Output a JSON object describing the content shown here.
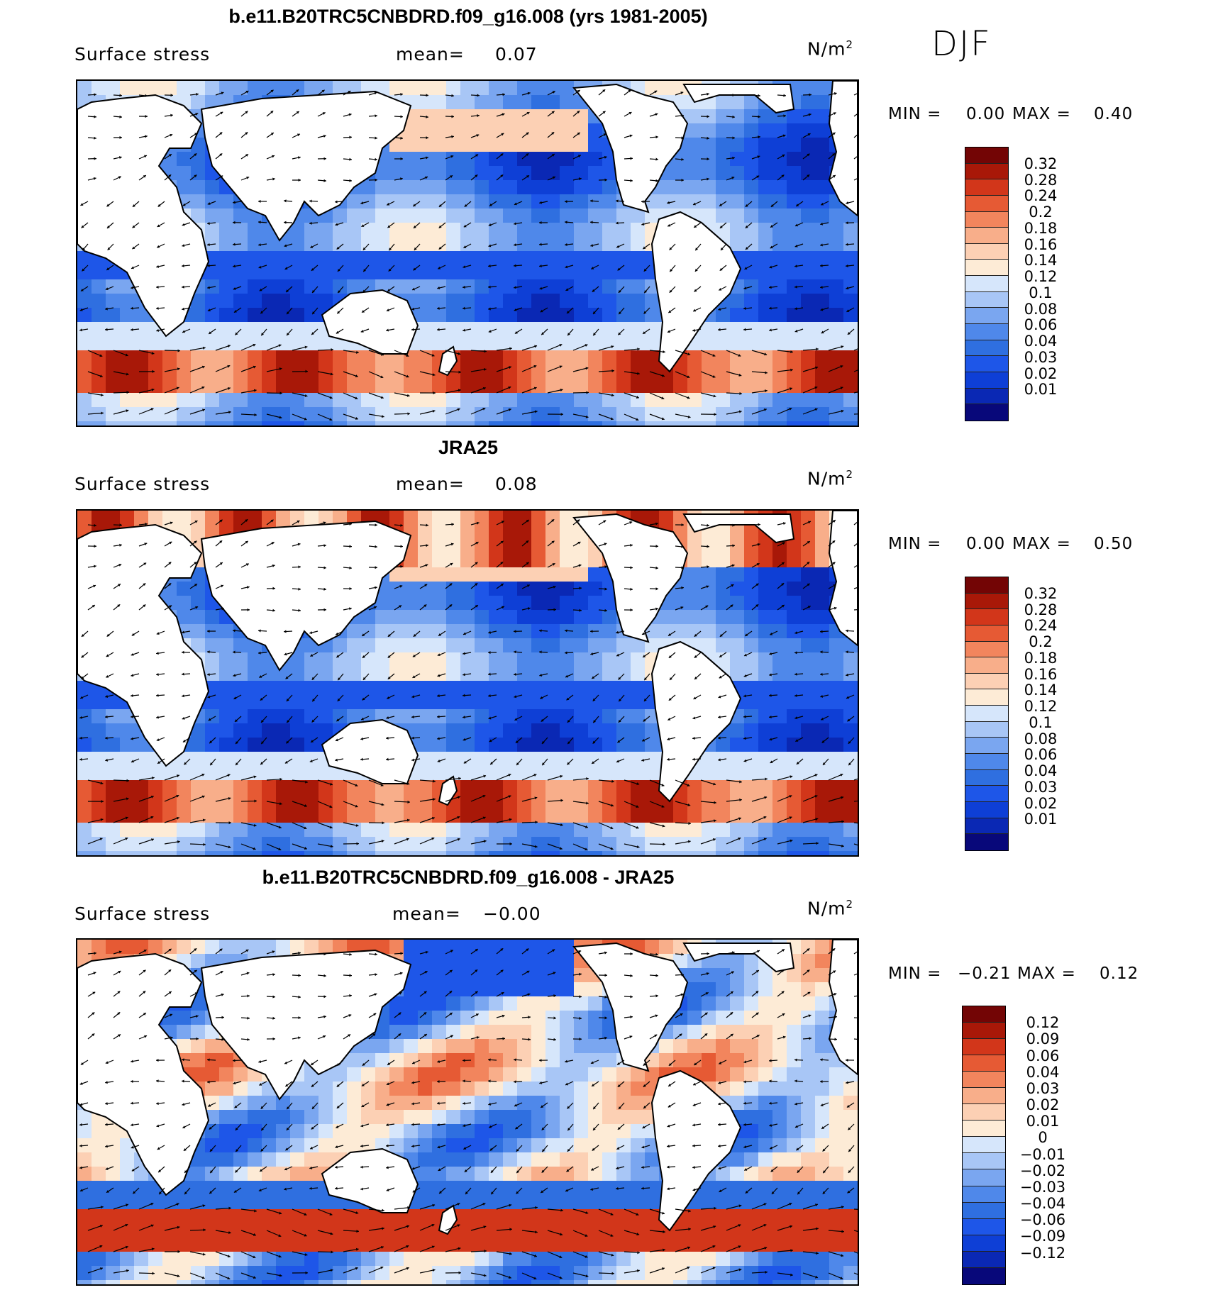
{
  "season": "DJF",
  "colors": {
    "land": "#ffffff",
    "scale": [
      "#08087a",
      "#0a28b4",
      "#0e3fd6",
      "#1e56e8",
      "#2f6fe0",
      "#4f88ea",
      "#7aa6f0",
      "#a8c6f6",
      "#d6e6fb",
      "#fdebd6",
      "#fcd0b4",
      "#f8ae8a",
      "#f2855d",
      "#e65a34",
      "#d2361a",
      "#a81808",
      "#730505"
    ]
  },
  "panels": [
    {
      "title": "b.e11.B20TRC5CNBDRD.f09_g16.008 (yrs 1981-2005)",
      "variable": "Surface stress",
      "mean_label": "mean=",
      "mean_value": "0.07",
      "units": "N/m",
      "units_exp": "2",
      "min_label": "MIN =",
      "min_value": "0.00",
      "max_label": "MAX =",
      "max_value": "0.40",
      "levels": [
        "0.32",
        "0.28",
        "0.24",
        "0.2",
        "0.18",
        "0.16",
        "0.14",
        "0.12",
        "0.1",
        "0.08",
        "0.06",
        "0.04",
        "0.03",
        "0.02",
        "0.01"
      ]
    },
    {
      "title": "JRA25",
      "variable": "Surface stress",
      "mean_label": "mean=",
      "mean_value": "0.08",
      "units": "N/m",
      "units_exp": "2",
      "min_label": "MIN =",
      "min_value": "0.00",
      "max_label": "MAX =",
      "max_value": "0.50",
      "levels": [
        "0.32",
        "0.28",
        "0.24",
        "0.2",
        "0.18",
        "0.16",
        "0.14",
        "0.12",
        "0.1",
        "0.08",
        "0.06",
        "0.04",
        "0.03",
        "0.02",
        "0.01"
      ]
    },
    {
      "title": "b.e11.B20TRC5CNBDRD.f09_g16.008 - JRA25",
      "variable": "Surface stress",
      "mean_label": "mean=",
      "mean_value": "−0.00",
      "units": "N/m",
      "units_exp": "2",
      "min_label": "MIN =",
      "min_value": "−0.21",
      "max_label": "MAX =",
      "max_value": "0.12",
      "levels": [
        "0.12",
        "0.09",
        "0.06",
        "0.04",
        "0.03",
        "0.02",
        "0.01",
        "0",
        "−0.01",
        "−0.02",
        "−0.03",
        "−0.04",
        "−0.06",
        "−0.09",
        "−0.12"
      ]
    }
  ]
}
